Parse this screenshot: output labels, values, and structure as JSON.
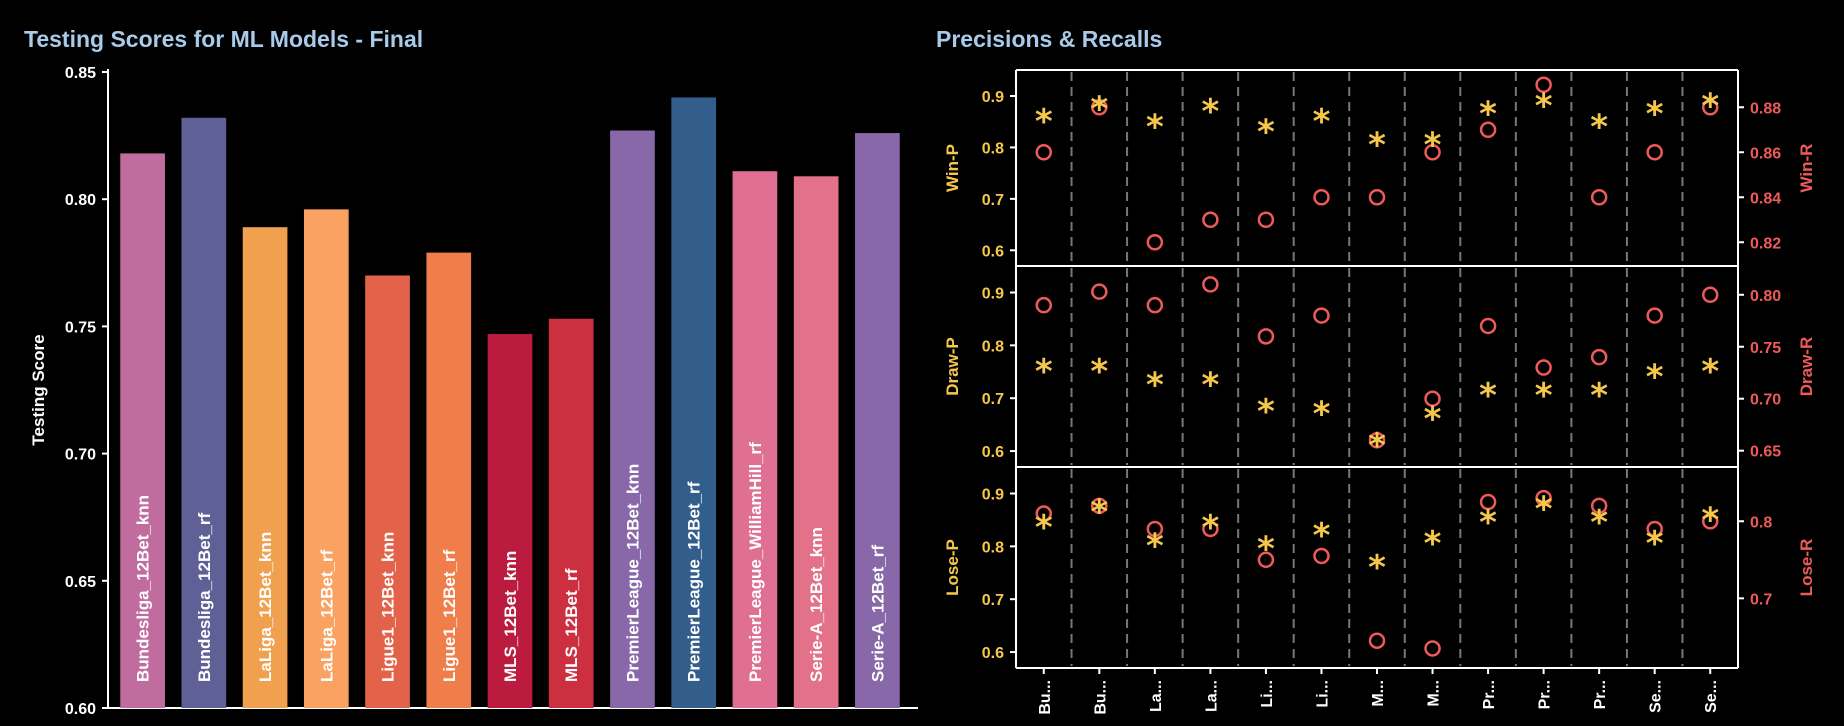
{
  "chart_data": [
    {
      "type": "bar",
      "title": "Testing Scores for ML Models - Final",
      "xlabel": "",
      "ylabel": "Testing Score",
      "ylim": [
        0.6,
        0.85
      ],
      "yticks": [
        "0.60",
        "0.65",
        "0.70",
        "0.75",
        "0.80",
        "0.85"
      ],
      "grid": false,
      "categories": [
        "Bundesliga_12Bet_knn",
        "Bundesliga_12Bet_rf",
        "LaLiga_12Bet_knn",
        "LaLiga_12Bet_rf",
        "Ligue1_12Bet_knn",
        "Ligue1_12Bet_rf",
        "MLS_12Bet_knn",
        "MLS_12Bet_rf",
        "PremierLeague_12Bet_knn",
        "PremierLeague_12Bet_rf",
        "PremierLeague_WilliamHill_rf",
        "Serie-A_12Bet_knn",
        "Serie-A_12Bet_rf"
      ],
      "values": [
        0.818,
        0.832,
        0.789,
        0.796,
        0.77,
        0.779,
        0.747,
        0.753,
        0.827,
        0.84,
        0.811,
        0.809,
        0.826
      ],
      "colors": [
        "#c06c9f",
        "#5f6096",
        "#f0a04e",
        "#f9a261",
        "#e3634a",
        "#ef7e4a",
        "#ba1b3e",
        "#cc3040",
        "#8868a8",
        "#335e8c",
        "#df7093",
        "#e37189",
        "#8868a8"
      ]
    },
    {
      "type": "scatter",
      "title": "Precisions & Recalls",
      "xtick_labels": [
        "Bu...",
        "Bu...",
        "La...",
        "La...",
        "Li...",
        "Li...",
        "M...",
        "M...",
        "Pr...",
        "Pr...",
        "Pr...",
        "Se...",
        "Se..."
      ],
      "grid": "vertical dashed",
      "precision_color": "#f5c84c",
      "recall_color": "#ee5a5a",
      "panels": [
        {
          "left_label": "Win-P",
          "right_label": "Win-R",
          "left_ticks": [
            "0.6",
            "0.7",
            "0.8",
            "0.9"
          ],
          "left_range": [
            0.585,
            0.935
          ],
          "right_ticks": [
            "0.82",
            "0.84",
            "0.86",
            "0.88"
          ],
          "right_range": [
            0.813,
            0.893
          ],
          "precision": [
            0.855,
            0.88,
            0.845,
            0.875,
            0.835,
            0.855,
            0.81,
            0.81,
            0.87,
            0.885,
            0.845,
            0.87,
            0.885
          ],
          "recall": [
            0.86,
            0.88,
            0.82,
            0.83,
            0.83,
            0.84,
            0.84,
            0.86,
            0.87,
            0.89,
            0.84,
            0.86,
            0.88
          ]
        },
        {
          "left_label": "Draw-P",
          "right_label": "Draw-R",
          "left_ticks": [
            "0.6",
            "0.7",
            "0.8",
            "0.9"
          ],
          "left_range": [
            0.585,
            0.935
          ],
          "right_ticks": [
            "0.65",
            "0.70",
            "0.75",
            "0.80"
          ],
          "right_range": [
            0.642,
            0.82
          ],
          "precision": [
            0.755,
            0.755,
            0.73,
            0.73,
            0.68,
            0.675,
            0.615,
            0.665,
            0.71,
            0.71,
            0.71,
            0.745,
            0.755
          ],
          "recall": [
            0.79,
            0.803,
            0.79,
            0.81,
            0.76,
            0.78,
            0.66,
            0.7,
            0.77,
            0.73,
            0.74,
            0.78,
            0.8
          ]
        },
        {
          "left_label": "Lose-P",
          "right_label": "Lose-R",
          "left_ticks": [
            "0.6",
            "0.7",
            "0.8",
            "0.9"
          ],
          "left_range": [
            0.585,
            0.935
          ],
          "right_ticks": [
            "0.7",
            "0.8"
          ],
          "right_range": [
            0.62,
            0.86
          ],
          "precision": [
            0.84,
            0.87,
            0.805,
            0.84,
            0.8,
            0.825,
            0.765,
            0.81,
            0.85,
            0.875,
            0.85,
            0.81,
            0.855
          ],
          "recall": [
            0.81,
            0.82,
            0.79,
            0.79,
            0.75,
            0.755,
            0.645,
            0.635,
            0.825,
            0.83,
            0.82,
            0.79,
            0.8
          ]
        }
      ]
    }
  ]
}
